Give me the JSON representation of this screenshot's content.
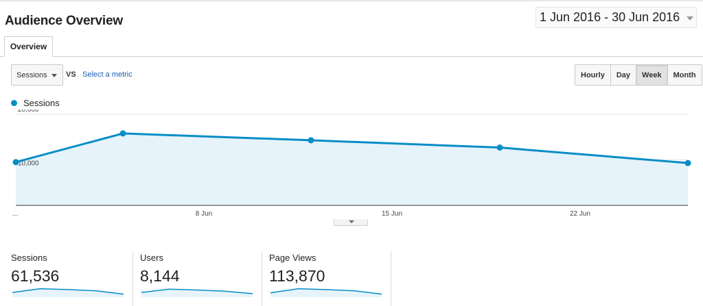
{
  "header": {
    "title": "Audience Overview",
    "date_range": "1 Jun 2016 - 30 Jun 2016"
  },
  "tabs": [
    {
      "label": "Overview",
      "active": true
    }
  ],
  "controls": {
    "metric": "Sessions",
    "vs": "VS",
    "select_metric": "Select a metric",
    "granularity": [
      {
        "label": "Hourly",
        "active": false
      },
      {
        "label": "Day",
        "active": false
      },
      {
        "label": "Week",
        "active": true
      },
      {
        "label": "Month",
        "active": false
      }
    ]
  },
  "colors": {
    "series": "#058dc7",
    "fill": "#e6f3fa",
    "link": "#1a5cad"
  },
  "chart_data": {
    "type": "area",
    "series": [
      {
        "name": "Sessions",
        "values": [
          9500,
          15800,
          14300,
          12700,
          9300
        ]
      }
    ],
    "x_tick_labels": [
      "...",
      "8 Jun",
      "15 Jun",
      "22 Jun"
    ],
    "y_tick_labels": [
      "20,000",
      "10,000"
    ],
    "ylim": [
      0,
      20000
    ],
    "grid": true,
    "legend": "top-left"
  },
  "scorecards": [
    {
      "label": "Sessions",
      "value": "61,536",
      "trend": [
        0.4,
        0.85,
        0.75,
        0.6,
        0.2
      ]
    },
    {
      "label": "Users",
      "value": "8,144",
      "trend": [
        0.4,
        0.8,
        0.7,
        0.55,
        0.25
      ]
    },
    {
      "label": "Page Views",
      "value": "113,870",
      "trend": [
        0.35,
        0.85,
        0.75,
        0.6,
        0.2
      ]
    }
  ]
}
